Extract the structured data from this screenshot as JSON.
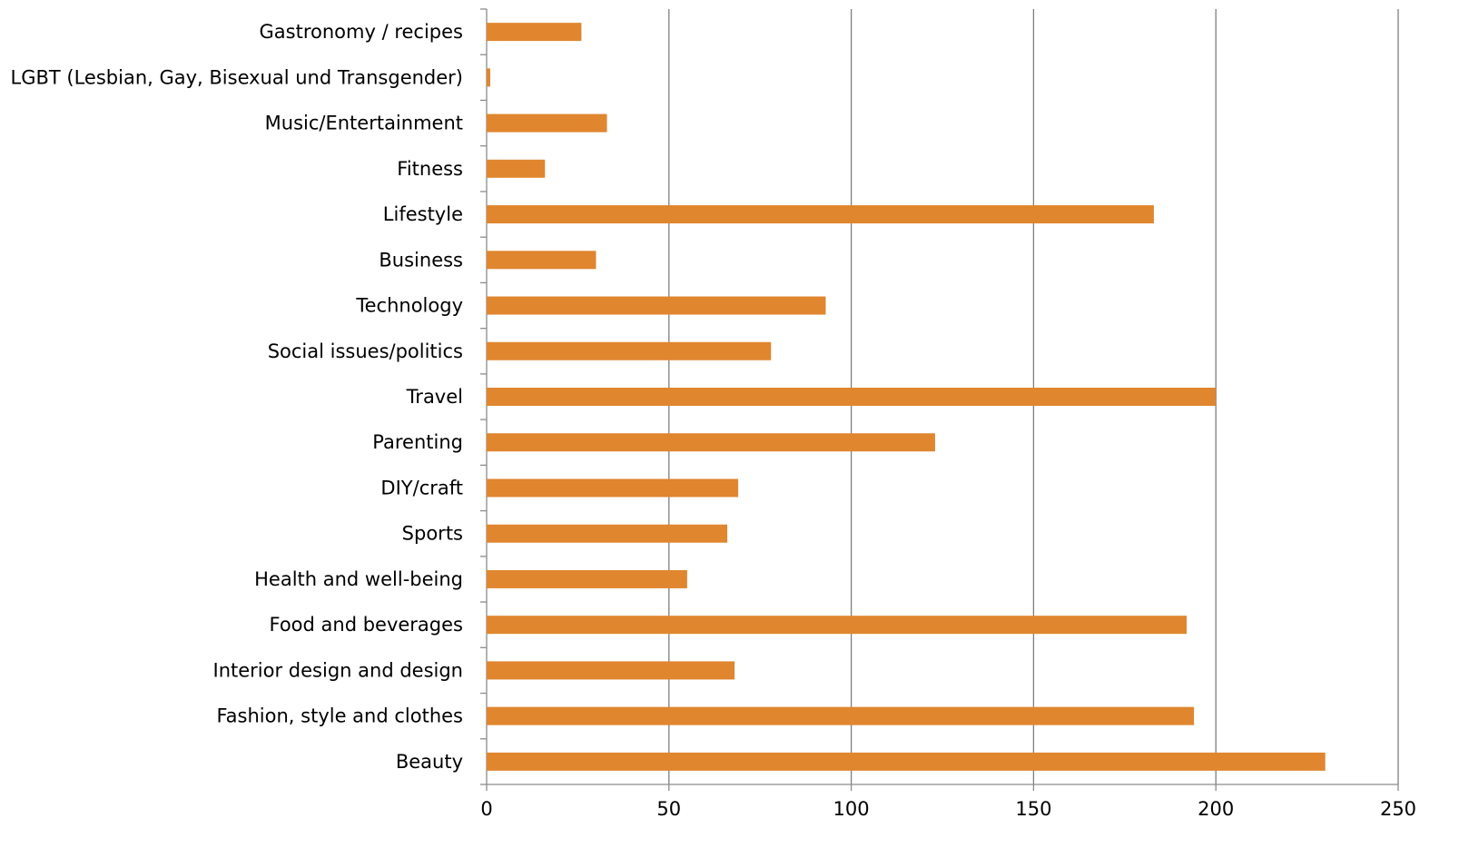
{
  "chart_data": {
    "type": "bar",
    "orientation": "horizontal",
    "title": "",
    "xlabel": "",
    "ylabel": "",
    "xlim": [
      0,
      250
    ],
    "x_ticks": [
      0,
      50,
      100,
      150,
      200,
      250
    ],
    "grid": "vertical major gridlines",
    "legend": "none",
    "bar_color": "#e0862f",
    "categories": [
      "Gastronomy / recipes",
      "LGBT (Lesbian, Gay, Bisexual und Transgender)",
      "Music/Entertainment",
      "Fitness",
      "Lifestyle",
      "Business",
      "Technology",
      "Social issues/politics",
      "Travel",
      "Parenting",
      "DIY/craft",
      "Sports",
      "Health and well-being",
      "Food and beverages",
      "Interior design and design",
      "Fashion, style and clothes",
      "Beauty"
    ],
    "values": [
      26,
      1,
      33,
      16,
      183,
      30,
      93,
      78,
      200,
      123,
      69,
      66,
      55,
      192,
      68,
      194,
      230
    ]
  }
}
